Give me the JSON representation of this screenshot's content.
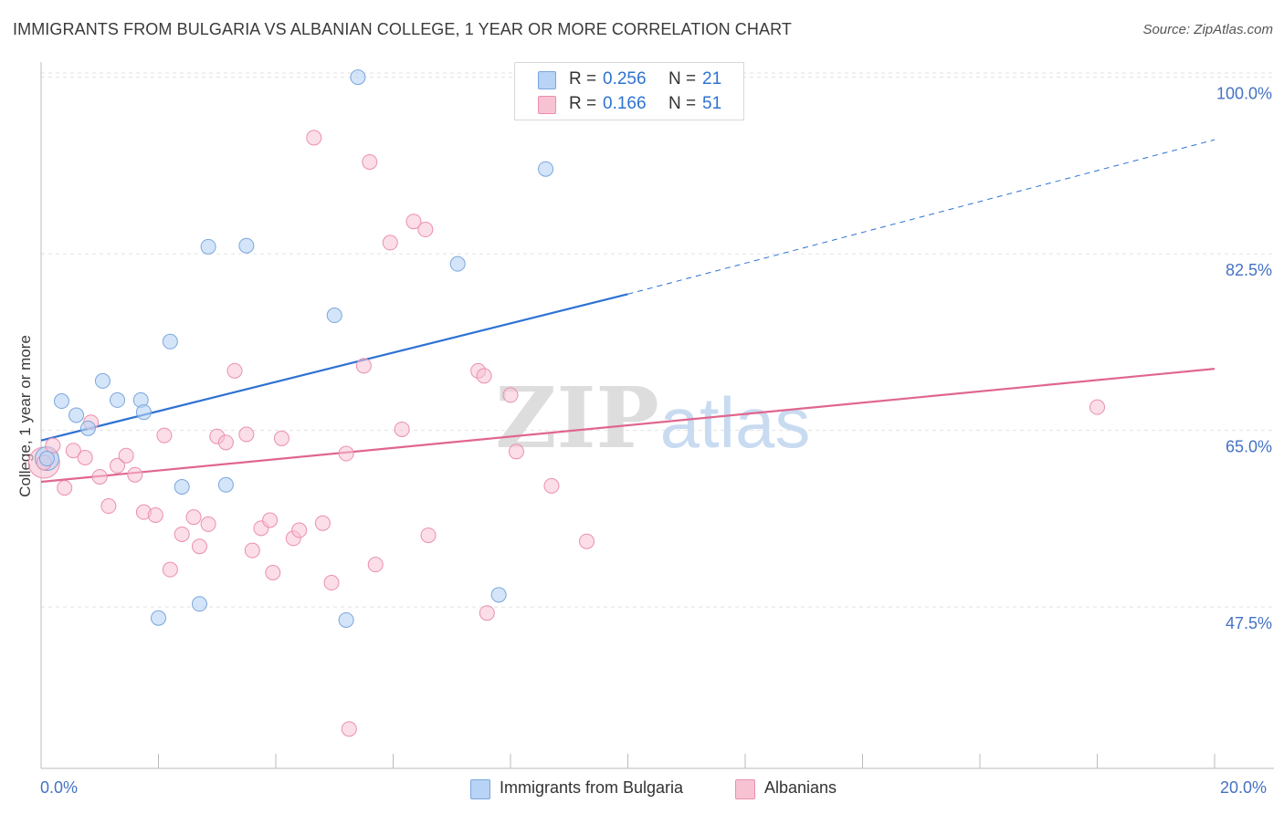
{
  "header": {
    "title": "IMMIGRANTS FROM BULGARIA VS ALBANIAN COLLEGE, 1 YEAR OR MORE CORRELATION CHART",
    "source": "Source: ZipAtlas.com"
  },
  "watermark": {
    "zip": "ZIP",
    "atlas": "atlas"
  },
  "stats": {
    "r_label": "R =",
    "n_label": "N =",
    "rows": [
      {
        "r": "0.256",
        "n": "21"
      },
      {
        "r": "0.166",
        "n": "51"
      }
    ]
  },
  "colors": {
    "blue_fill": "#b8d3f5",
    "blue_stroke": "#7aa6dd",
    "blue_line": "#2e72d2",
    "pink_fill": "#f7c3d3",
    "pink_stroke": "#eb8fae",
    "pink_line": "#e0668e",
    "tick_label": "#4472c4"
  },
  "chart_data": {
    "type": "scatter",
    "title": "IMMIGRANTS FROM BULGARIA VS ALBANIAN COLLEGE, 1 YEAR OR MORE CORRELATION CHART",
    "xlabel": "",
    "ylabel": "College, 1 year or more",
    "xlim": [
      0,
      20
    ],
    "ylim": [
      31.5,
      101.5
    ],
    "x_tick_labels": [
      "0.0%",
      "20.0%"
    ],
    "y_ticks": [
      {
        "value": 100.0,
        "label": "100.0%"
      },
      {
        "value": 82.5,
        "label": "82.5%"
      },
      {
        "value": 65.0,
        "label": "65.0%"
      },
      {
        "value": 47.5,
        "label": "47.5%"
      }
    ],
    "grid": true,
    "legend": [
      "Immigrants from Bulgaria",
      "Albanians"
    ],
    "series": [
      {
        "name": "Immigrants from Bulgaria",
        "color": "blue",
        "r": 0.256,
        "n": 21,
        "trend": {
          "x0": 0,
          "y0": 64.0,
          "x1": 10.0,
          "y1": 78.5,
          "dash_to_x": 20,
          "dash_to_y": 93.8
        },
        "points": [
          [
            0.1,
            62.2
          ],
          [
            0.35,
            67.9
          ],
          [
            0.6,
            66.5
          ],
          [
            0.8,
            65.2
          ],
          [
            1.05,
            69.9
          ],
          [
            1.3,
            68.0
          ],
          [
            1.7,
            68.0
          ],
          [
            1.75,
            66.8
          ],
          [
            2.0,
            46.4
          ],
          [
            2.2,
            73.8
          ],
          [
            2.4,
            59.4
          ],
          [
            2.7,
            47.8
          ],
          [
            2.85,
            83.2
          ],
          [
            3.15,
            59.6
          ],
          [
            3.5,
            83.3
          ],
          [
            5.0,
            76.4
          ],
          [
            5.2,
            46.2
          ],
          [
            5.4,
            100.0
          ],
          [
            7.1,
            81.5
          ],
          [
            7.8,
            48.7
          ],
          [
            8.6,
            90.9
          ]
        ]
      },
      {
        "name": "Albanians",
        "color": "pink",
        "r": 0.166,
        "n": 51,
        "trend": {
          "x0": 0,
          "y0": 59.9,
          "x1": 20,
          "y1": 71.1
        },
        "points": [
          [
            0.05,
            61.8
          ],
          [
            0.2,
            63.5
          ],
          [
            0.4,
            59.3
          ],
          [
            0.55,
            63.0
          ],
          [
            0.75,
            62.3
          ],
          [
            0.85,
            65.8
          ],
          [
            1.0,
            60.4
          ],
          [
            1.15,
            57.5
          ],
          [
            1.3,
            61.5
          ],
          [
            1.45,
            62.5
          ],
          [
            1.6,
            60.6
          ],
          [
            1.75,
            56.9
          ],
          [
            1.95,
            56.6
          ],
          [
            2.1,
            64.5
          ],
          [
            2.2,
            51.2
          ],
          [
            2.4,
            54.7
          ],
          [
            2.6,
            56.4
          ],
          [
            2.7,
            53.5
          ],
          [
            2.85,
            55.7
          ],
          [
            3.0,
            64.4
          ],
          [
            3.15,
            63.8
          ],
          [
            3.3,
            70.9
          ],
          [
            3.5,
            64.6
          ],
          [
            3.6,
            53.1
          ],
          [
            3.75,
            55.3
          ],
          [
            3.9,
            56.1
          ],
          [
            3.95,
            50.9
          ],
          [
            4.1,
            64.2
          ],
          [
            4.3,
            54.3
          ],
          [
            4.4,
            55.1
          ],
          [
            4.65,
            94.0
          ],
          [
            4.8,
            55.8
          ],
          [
            4.95,
            49.9
          ],
          [
            5.2,
            62.7
          ],
          [
            5.5,
            71.4
          ],
          [
            5.6,
            91.6
          ],
          [
            5.7,
            51.7
          ],
          [
            5.95,
            83.6
          ],
          [
            6.15,
            65.1
          ],
          [
            6.35,
            85.7
          ],
          [
            6.55,
            84.9
          ],
          [
            6.6,
            54.6
          ],
          [
            7.45,
            70.9
          ],
          [
            7.55,
            70.4
          ],
          [
            7.6,
            46.9
          ],
          [
            8.0,
            68.5
          ],
          [
            8.1,
            62.9
          ],
          [
            8.7,
            59.5
          ],
          [
            9.3,
            54.0
          ],
          [
            5.25,
            35.4
          ],
          [
            18.0,
            67.3
          ]
        ]
      }
    ]
  }
}
